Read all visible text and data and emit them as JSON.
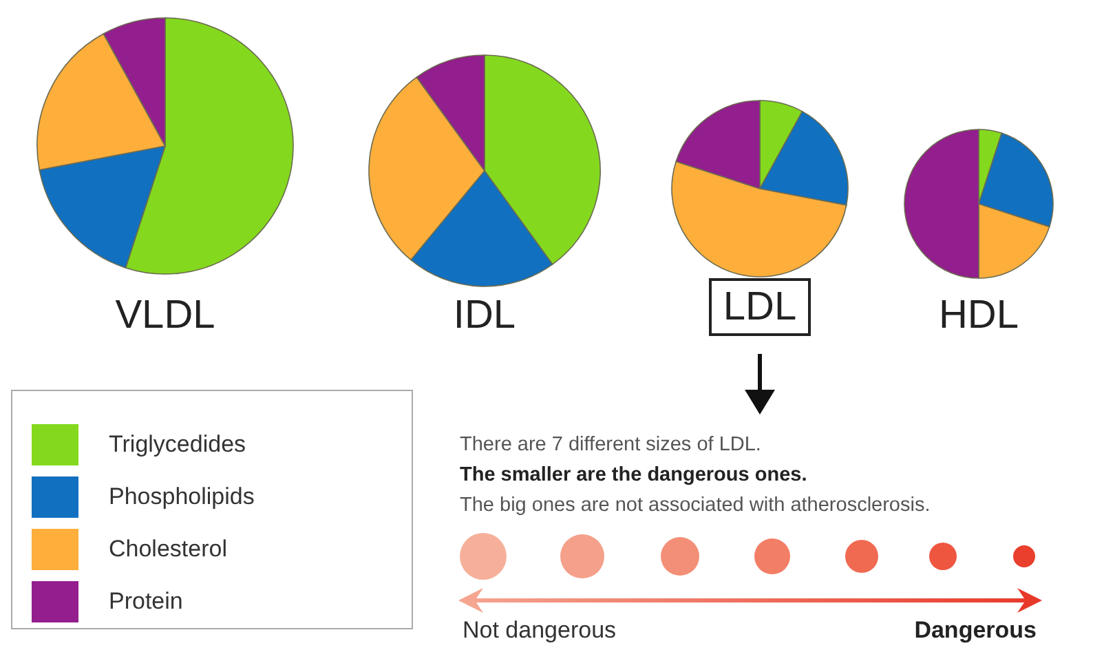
{
  "chart_data": [
    {
      "type": "pie",
      "title": "VLDL",
      "categories": [
        "Triglycedides",
        "Phospholipids",
        "Cholesterol",
        "Protein"
      ],
      "values": [
        55,
        17,
        20,
        8
      ],
      "colors": [
        "#84d91e",
        "#1170c0",
        "#fdae3b",
        "#931e8d"
      ],
      "legend": "bottom left"
    },
    {
      "type": "pie",
      "title": "IDL",
      "categories": [
        null,
        null,
        null,
        null
      ],
      "values": [
        40,
        21,
        29,
        10
      ],
      "colors": [
        "#84d91e",
        "#1170c0",
        "#fdae3b",
        "#931e8d"
      ]
    },
    {
      "type": "pie",
      "title": "LDL",
      "categories": [
        null,
        null,
        null,
        null
      ],
      "values": [
        8,
        20,
        52,
        20
      ],
      "colors": [
        "#84d91e",
        "#1170c0",
        "#fdae3b",
        "#931e8d"
      ]
    },
    {
      "type": "pie",
      "title": "HDL",
      "categories": [
        null,
        null,
        null,
        null
      ],
      "values": [
        5,
        25,
        20,
        50
      ],
      "colors": [
        "#84d91e",
        "#1170c0",
        "#fdae3b",
        "#931e8d"
      ]
    },
    {
      "type": "other",
      "annotations": [
        "There are 7 different sizes of LDL.",
        "The smaller are the dangerous ones.",
        "The big ones are not associated with atherosclerosis.",
        "Not dangerous",
        "Dangerous"
      ]
    }
  ]
}
